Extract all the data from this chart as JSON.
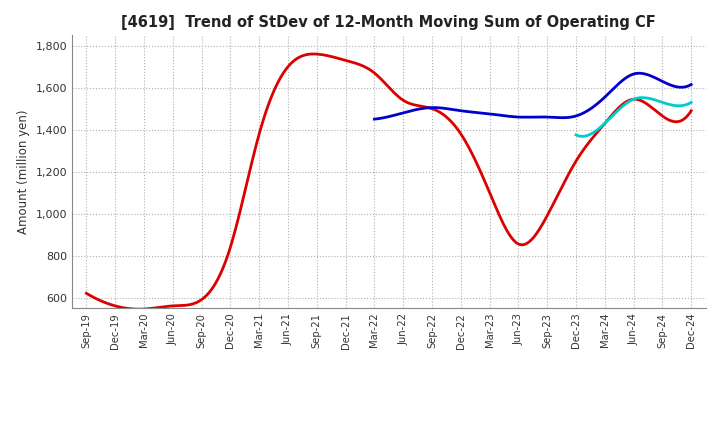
{
  "title": "[4619]  Trend of StDev of 12-Month Moving Sum of Operating CF",
  "ylabel": "Amount (million yen)",
  "background_color": "#ffffff",
  "grid_color": "#b0b0b0",
  "ylim": [
    550,
    1850
  ],
  "yticks": [
    600,
    800,
    1000,
    1200,
    1400,
    1600,
    1800
  ],
  "x_labels": [
    "Sep-19",
    "Dec-19",
    "Mar-20",
    "Jun-20",
    "Sep-20",
    "Dec-20",
    "Mar-21",
    "Jun-21",
    "Sep-21",
    "Dec-21",
    "Mar-22",
    "Jun-22",
    "Sep-22",
    "Dec-22",
    "Mar-23",
    "Jun-23",
    "Sep-23",
    "Dec-23",
    "Mar-24",
    "Jun-24",
    "Sep-24",
    "Dec-24"
  ],
  "series": {
    "3 Years": {
      "color": "#dd0000",
      "linewidth": 2.0,
      "values": [
        620,
        560,
        545,
        560,
        590,
        840,
        1380,
        1700,
        1760,
        1730,
        1670,
        1540,
        1500,
        1380,
        1100,
        855,
        990,
        1250,
        1430,
        1545,
        1465,
        1490
      ]
    },
    "5 Years": {
      "color": "#0000cc",
      "linewidth": 2.0,
      "values": [
        null,
        null,
        null,
        null,
        null,
        null,
        null,
        null,
        null,
        null,
        1450,
        1480,
        1505,
        1490,
        1475,
        1460,
        1460,
        1465,
        1555,
        1665,
        1630,
        1615
      ]
    },
    "7 Years": {
      "color": "#00cccc",
      "linewidth": 2.0,
      "values": [
        null,
        null,
        null,
        null,
        null,
        null,
        null,
        null,
        null,
        null,
        null,
        null,
        null,
        null,
        null,
        null,
        null,
        1375,
        1430,
        1545,
        1530,
        1530
      ]
    },
    "10 Years": {
      "color": "#336600",
      "linewidth": 2.0,
      "values": [
        null,
        null,
        null,
        null,
        null,
        null,
        null,
        null,
        null,
        null,
        null,
        null,
        null,
        null,
        null,
        null,
        null,
        null,
        null,
        null,
        null,
        null
      ]
    }
  }
}
